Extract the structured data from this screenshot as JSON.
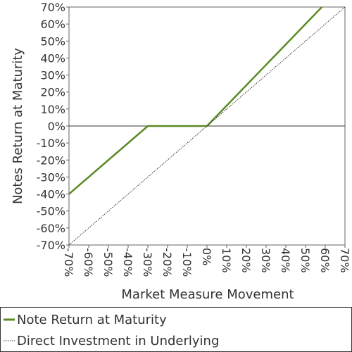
{
  "chart_data": {
    "type": "line",
    "title": "",
    "xlabel": "Market Measure Movement",
    "ylabel": "Notes Return at Maturity",
    "xlim": [
      -70,
      70
    ],
    "ylim": [
      -70,
      70
    ],
    "x_ticks": [
      "-70%",
      "-60%",
      "-50%",
      "-40%",
      "-30%",
      "-20%",
      "-10%",
      "0%",
      "10%",
      "20%",
      "30%",
      "40%",
      "50%",
      "60%",
      "70%"
    ],
    "y_ticks": [
      "70%",
      "60%",
      "50%",
      "40%",
      "30%",
      "20%",
      "10%",
      "0%",
      "-10%",
      "-20%",
      "-30%",
      "-40%",
      "-50%",
      "-60%",
      "-70%"
    ],
    "grid": false,
    "legend_position": "bottom",
    "series": [
      {
        "name": "Note Return at Maturity",
        "color": "#5b8a26",
        "style": "solid",
        "points": [
          [
            -70,
            -40
          ],
          [
            -30,
            0
          ],
          [
            0,
            0
          ],
          [
            58.3,
            70
          ]
        ]
      },
      {
        "name": "Direct Investment in Underlying",
        "color": "#333333",
        "style": "dotted",
        "points": [
          [
            -70,
            -70
          ],
          [
            70,
            70
          ]
        ]
      }
    ]
  }
}
